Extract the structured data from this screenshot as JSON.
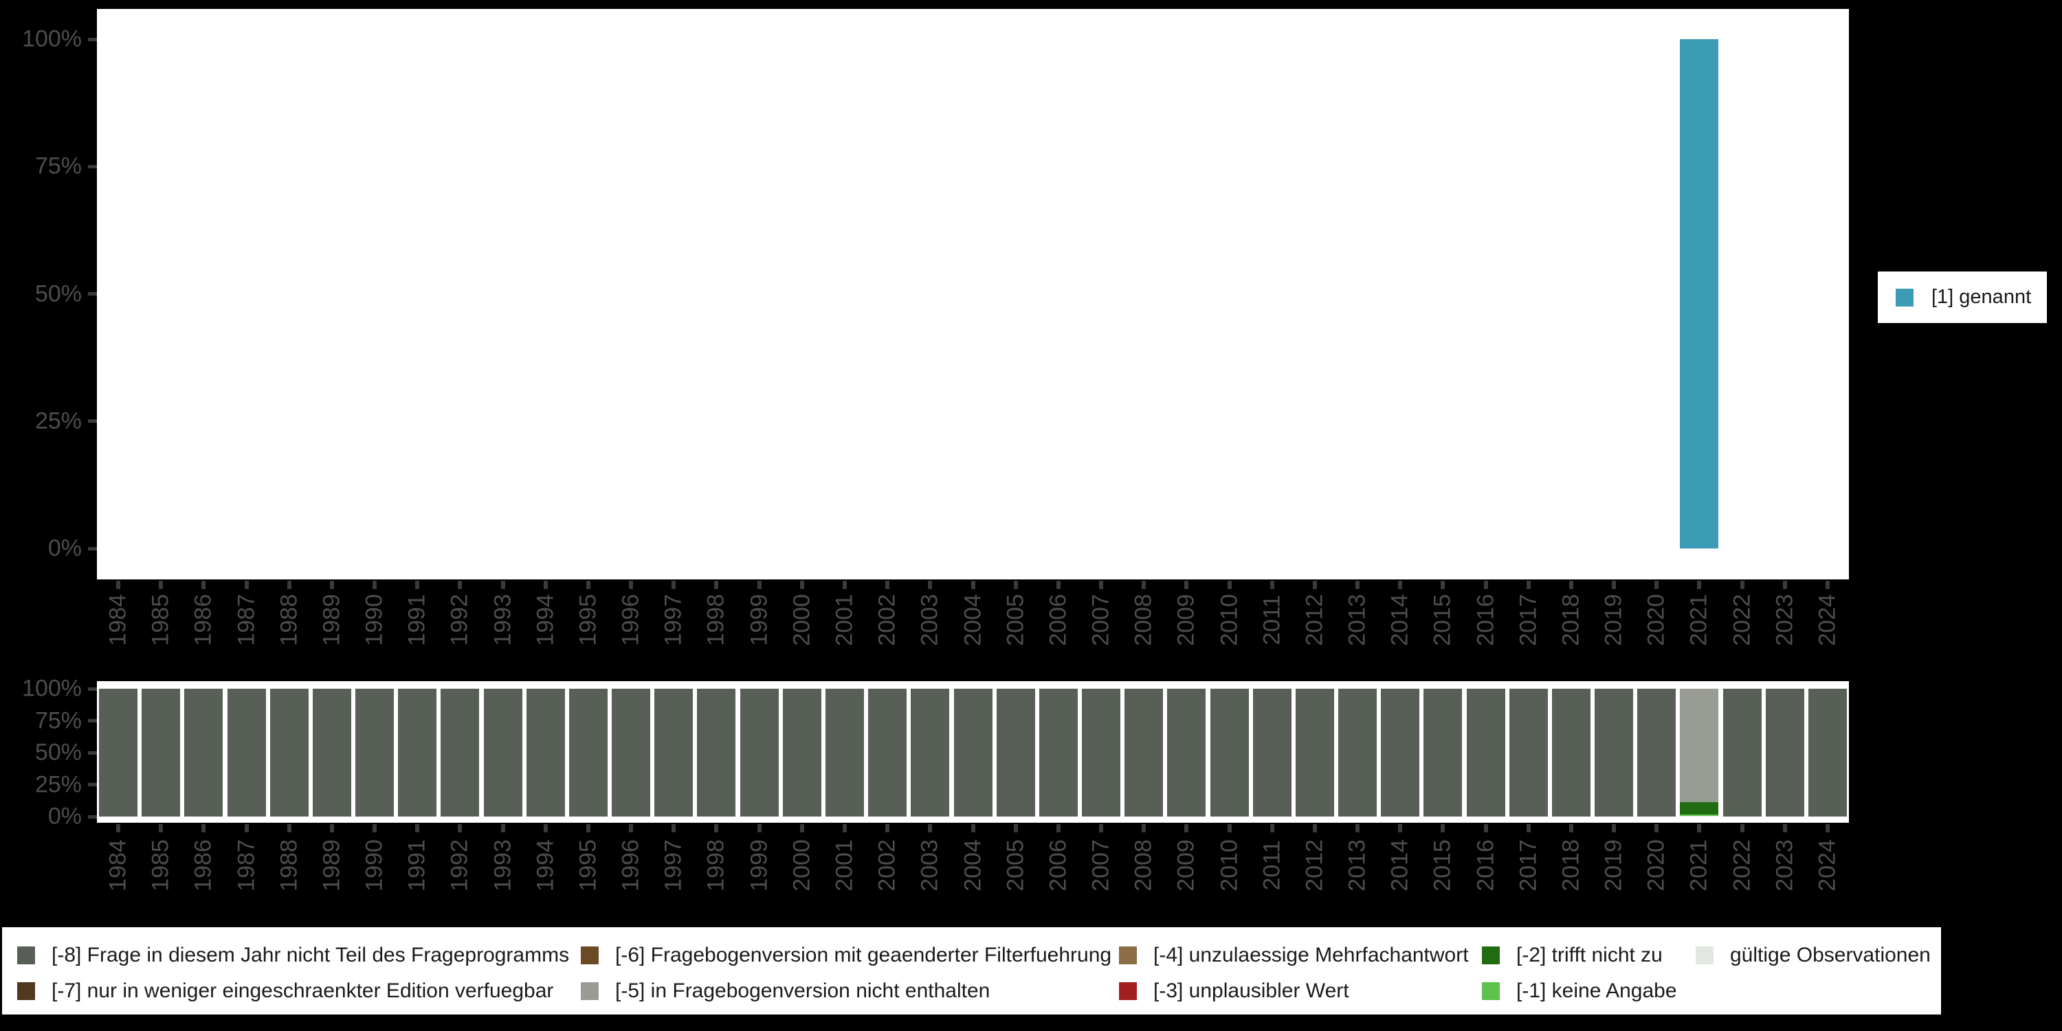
{
  "colors": {
    "background": "#000000",
    "plot_background": "#ffffff",
    "axis_text": "#4d4d4d",
    "tick_mark": "#3a3a3a",
    "legend_text": "#1a1a1a",
    "genannt_teal": "#3d9cb5",
    "code_minus8": "#575f56",
    "code_minus7": "#54381d",
    "code_minus6": "#6b4a26",
    "code_minus5": "#999c93",
    "code_minus4": "#8d6c48",
    "code_minus3": "#a32020",
    "code_minus2": "#216c10",
    "code_minus1": "#5cc24b",
    "valid_obs": "#e3e7e1"
  },
  "y_axis": {
    "tick_labels": [
      "100%",
      "75%",
      "50%",
      "25%",
      "0%"
    ],
    "tick_values": [
      100,
      75,
      50,
      25,
      0
    ]
  },
  "legend_right": {
    "items": [
      {
        "label": "[1] genannt",
        "color": "#3d9cb5"
      }
    ]
  },
  "legend_bottom": {
    "items": [
      {
        "label": "[-8] Frage in diesem Jahr nicht Teil des Frageprogramms",
        "color": "#575f56"
      },
      {
        "label": "[-7] nur in weniger eingeschraenkter Edition verfuegbar",
        "color": "#54381d"
      },
      {
        "label": "[-6] Fragebogenversion mit geaenderter Filterfuehrung",
        "color": "#6b4a26"
      },
      {
        "label": "[-5] in Fragebogenversion nicht enthalten",
        "color": "#999c93"
      },
      {
        "label": "[-4] unzulaessige Mehrfachantwort",
        "color": "#8d6c48"
      },
      {
        "label": "[-3] unplausibler Wert",
        "color": "#a32020"
      },
      {
        "label": "[-2] trifft nicht zu",
        "color": "#216c10"
      },
      {
        "label": "[-1] keine Angabe",
        "color": "#5cc24b"
      },
      {
        "label": "gültige Observationen",
        "color": "#e3e7e1"
      }
    ]
  },
  "chart_data": [
    {
      "id": "values-distribution",
      "type": "bar",
      "stacking": "percent",
      "title": "",
      "xlabel": "",
      "ylabel": "",
      "ylim": [
        0,
        100
      ],
      "yticks": [
        "0%",
        "25%",
        "50%",
        "75%",
        "100%"
      ],
      "grid": false,
      "legend_position": "right",
      "categories": [
        "1984",
        "1985",
        "1986",
        "1987",
        "1988",
        "1989",
        "1990",
        "1991",
        "1992",
        "1993",
        "1994",
        "1995",
        "1996",
        "1997",
        "1998",
        "1999",
        "2000",
        "2001",
        "2002",
        "2003",
        "2004",
        "2005",
        "2006",
        "2007",
        "2008",
        "2009",
        "2010",
        "2011",
        "2012",
        "2013",
        "2014",
        "2015",
        "2016",
        "2017",
        "2018",
        "2019",
        "2020",
        "2021",
        "2022",
        "2023",
        "2024"
      ],
      "series": [
        {
          "name": "[1] genannt",
          "color": "#3d9cb5",
          "values": [
            0,
            0,
            0,
            0,
            0,
            0,
            0,
            0,
            0,
            0,
            0,
            0,
            0,
            0,
            0,
            0,
            0,
            0,
            0,
            0,
            0,
            0,
            0,
            0,
            0,
            0,
            0,
            0,
            0,
            0,
            0,
            0,
            0,
            0,
            0,
            0,
            0,
            100,
            0,
            0,
            0
          ]
        }
      ]
    },
    {
      "id": "missing-codes-distribution",
      "type": "bar",
      "stacking": "percent",
      "title": "",
      "xlabel": "",
      "ylabel": "",
      "ylim": [
        0,
        100
      ],
      "yticks": [
        "0%",
        "25%",
        "50%",
        "75%",
        "100%"
      ],
      "grid": false,
      "legend_position": "bottom",
      "stack_order": "bottom-to-top",
      "categories": [
        "1984",
        "1985",
        "1986",
        "1987",
        "1988",
        "1989",
        "1990",
        "1991",
        "1992",
        "1993",
        "1994",
        "1995",
        "1996",
        "1997",
        "1998",
        "1999",
        "2000",
        "2001",
        "2002",
        "2003",
        "2004",
        "2005",
        "2006",
        "2007",
        "2008",
        "2009",
        "2010",
        "2011",
        "2012",
        "2013",
        "2014",
        "2015",
        "2016",
        "2017",
        "2018",
        "2019",
        "2020",
        "2021",
        "2022",
        "2023",
        "2024"
      ],
      "series": [
        {
          "name": "gültige Observationen",
          "color": "#e3e7e1",
          "values": [
            0,
            0,
            0,
            0,
            0,
            0,
            0,
            0,
            0,
            0,
            0,
            0,
            0,
            0,
            0,
            0,
            0,
            0,
            0,
            0,
            0,
            0,
            0,
            0,
            0,
            0,
            0,
            0,
            0,
            0,
            0,
            0,
            0,
            0,
            0,
            0,
            0,
            0.3,
            0,
            0,
            0
          ]
        },
        {
          "name": "[-1] keine Angabe",
          "color": "#5cc24b",
          "values": [
            0,
            0,
            0,
            0,
            0,
            0,
            0,
            0,
            0,
            0,
            0,
            0,
            0,
            0,
            0,
            0,
            0,
            0,
            0,
            0,
            0,
            0,
            0,
            0,
            0,
            0,
            0,
            0,
            0,
            0,
            0,
            0,
            0,
            0,
            0,
            0,
            0,
            1.5,
            0,
            0,
            0
          ]
        },
        {
          "name": "[-2] trifft nicht zu",
          "color": "#216c10",
          "values": [
            0,
            0,
            0,
            0,
            0,
            0,
            0,
            0,
            0,
            0,
            0,
            0,
            0,
            0,
            0,
            0,
            0,
            0,
            0,
            0,
            0,
            0,
            0,
            0,
            0,
            0,
            0,
            0,
            0,
            0,
            0,
            0,
            0,
            0,
            0,
            0,
            0,
            9.6,
            0,
            0,
            0
          ]
        },
        {
          "name": "[-5] in Fragebogenversion nicht enthalten",
          "color": "#999c93",
          "values": [
            0,
            0,
            0,
            0,
            0,
            0,
            0,
            0,
            0,
            0,
            0,
            0,
            0,
            0,
            0,
            0,
            0,
            0,
            0,
            0,
            0,
            0,
            0,
            0,
            0,
            0,
            0,
            0,
            0,
            0,
            0,
            0,
            0,
            0,
            0,
            0,
            0,
            88.6,
            0,
            0,
            0
          ]
        },
        {
          "name": "[-8] Frage in diesem Jahr nicht Teil des Frageprogramms",
          "color": "#575f56",
          "values": [
            100,
            100,
            100,
            100,
            100,
            100,
            100,
            100,
            100,
            100,
            100,
            100,
            100,
            100,
            100,
            100,
            100,
            100,
            100,
            100,
            100,
            100,
            100,
            100,
            100,
            100,
            100,
            100,
            100,
            100,
            100,
            100,
            100,
            100,
            100,
            100,
            100,
            0,
            100,
            100,
            100
          ]
        }
      ]
    }
  ]
}
